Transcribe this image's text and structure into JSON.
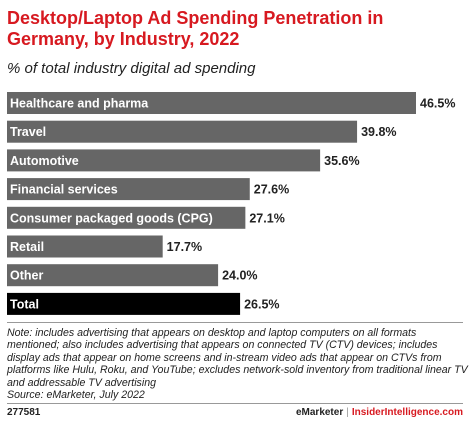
{
  "header": {
    "title": "Desktop/Laptop Ad Spending Penetration in Germany, by Industry, 2022",
    "subtitle": "% of total industry digital ad spending"
  },
  "chart_data": {
    "type": "bar",
    "orientation": "horizontal",
    "title": "Desktop/Laptop Ad Spending Penetration in Germany, by Industry, 2022",
    "subtitle": "% of total industry digital ad spending",
    "categories": [
      "Healthcare and pharma",
      "Travel",
      "Automotive",
      "Financial services",
      "Consumer packaged goods (CPG)",
      "Retail",
      "Other",
      "Total"
    ],
    "values": [
      46.5,
      39.8,
      35.6,
      27.6,
      27.1,
      17.7,
      24.0,
      26.5
    ],
    "value_labels": [
      "46.5%",
      "39.8%",
      "35.6%",
      "27.6%",
      "27.1%",
      "17.7%",
      "24.0%",
      "26.5%"
    ],
    "xlim": [
      0,
      46.5
    ],
    "colors": {
      "bar": "#666666",
      "total_bar": "#000000",
      "title": "#d71920"
    },
    "grid": false,
    "legend": "none"
  },
  "footer": {
    "note": "Note: includes advertising that appears on desktop and laptop computers on all formats mentioned; also includes advertising that appears on connected TV (CTV) devices; includes display ads that appear on home screens and in-stream video ads that appear on CTVs from platforms like Hulu, Roku, and YouTube; excludes network-sold inventory from traditional linear TV and addressable TV advertising",
    "source": "Source: eMarketer, July 2022",
    "chart_id": "277581",
    "brand_emarketer": "eMarketer",
    "separator": "|",
    "brand_insider": "InsiderIntelligence.com"
  }
}
